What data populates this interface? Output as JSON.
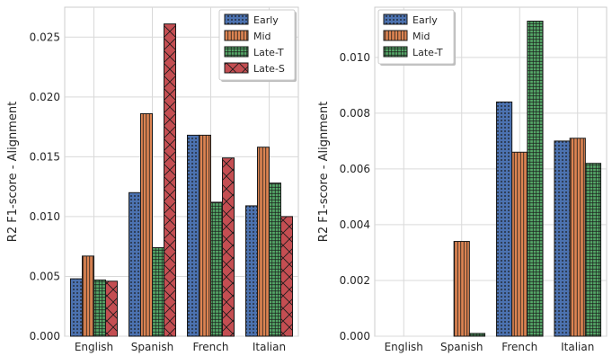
{
  "chart_data": [
    {
      "type": "bar",
      "categories": [
        "English",
        "Spanish",
        "French",
        "Italian"
      ],
      "series": [
        {
          "name": "Early",
          "values": [
            0.0048,
            0.012,
            0.0168,
            0.0109
          ]
        },
        {
          "name": "Mid",
          "values": [
            0.0067,
            0.0186,
            0.0168,
            0.0158
          ]
        },
        {
          "name": "Late-T",
          "values": [
            0.0047,
            0.0074,
            0.0112,
            0.0128
          ]
        },
        {
          "name": "Late-S",
          "values": [
            0.0046,
            0.0261,
            0.0149,
            0.01
          ]
        }
      ],
      "ylabel": "R2 F1-score - Alignment",
      "ylim": [
        0,
        0.0275
      ],
      "yticks": [
        "0.000",
        "0.005",
        "0.010",
        "0.015",
        "0.020",
        "0.025"
      ],
      "grid": true,
      "legend_position": "top-right"
    },
    {
      "type": "bar",
      "categories": [
        "English",
        "Spanish",
        "French",
        "Italian"
      ],
      "series": [
        {
          "name": "Early",
          "values": [
            0.0,
            0.0,
            0.0084,
            0.007
          ]
        },
        {
          "name": "Mid",
          "values": [
            0.0,
            0.0034,
            0.0066,
            0.0071
          ]
        },
        {
          "name": "Late-T",
          "values": [
            0.0,
            0.0001,
            0.0113,
            0.0062
          ]
        }
      ],
      "ylabel": "R2 F1-score - Alignment",
      "ylim": [
        0,
        0.0118
      ],
      "yticks": [
        "0.000",
        "0.002",
        "0.004",
        "0.006",
        "0.008",
        "0.010"
      ],
      "grid": true,
      "legend_position": "top-left"
    }
  ],
  "series_colors": {
    "Early": "#4c72b0",
    "Mid": "#dd8452",
    "Late-T": "#55a868",
    "Late-S": "#c44e52"
  },
  "series_patterns": {
    "Early": "dots",
    "Mid": "vertical-lines",
    "Late-T": "grid",
    "Late-S": "cross-hatch"
  }
}
